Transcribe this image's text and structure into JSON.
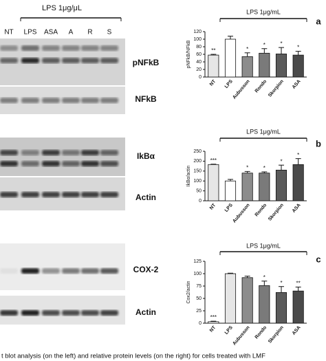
{
  "figure": {
    "blot_header": "LPS 1μg/μL",
    "lanes": [
      "NT",
      "LPS",
      "ASA",
      "A",
      "R",
      "S"
    ],
    "blot_labels": [
      "pNFkB",
      "NFkB",
      "IkBα",
      "Actin",
      "COX-2",
      "Actin"
    ],
    "caption": "t blot analysis (on the left) and relative protein levels (on the right) for cells treated with LMF"
  },
  "chart_data": [
    {
      "type": "bar",
      "panel": "a",
      "title": "LPS 1μg/mL",
      "ylabel": "pNFkB/NFkB",
      "categories": [
        "NT",
        "LPS",
        "Aubusson",
        "Rondo",
        "Skorpion",
        "ASA"
      ],
      "values": [
        58,
        100,
        54,
        63,
        61,
        58
      ],
      "errors": [
        2,
        8,
        10,
        12,
        17,
        10
      ],
      "annotations": [
        "**",
        null,
        "*",
        "*",
        "*",
        "*"
      ],
      "colors": [
        "#e6e6e6",
        "#ffffff",
        "#8c8c8c",
        "#7a7a7a",
        "#5a5a5a",
        "#4a4a4a"
      ],
      "ylim": [
        0,
        120
      ],
      "yticks": [
        0,
        20,
        40,
        60,
        80,
        100,
        120
      ]
    },
    {
      "type": "bar",
      "panel": "b",
      "title": "LPS 1μg/mL",
      "ylabel": "IkBα/actin",
      "categories": [
        "NT",
        "LPS",
        "Aubusson",
        "Rondo",
        "Skorpion",
        "ASA"
      ],
      "values": [
        183,
        100,
        140,
        140,
        155,
        183
      ],
      "errors": [
        2,
        8,
        8,
        6,
        25,
        30
      ],
      "annotations": [
        "***",
        null,
        "*",
        "*",
        "*",
        "*"
      ],
      "colors": [
        "#e6e6e6",
        "#ffffff",
        "#8c8c8c",
        "#7a7a7a",
        "#5a5a5a",
        "#4a4a4a"
      ],
      "ylim": [
        0,
        250
      ],
      "yticks": [
        0,
        50,
        100,
        150,
        200,
        250
      ]
    },
    {
      "type": "bar",
      "panel": "c",
      "title": "LPS 1μg/mL",
      "ylabel": "Cox2/actin",
      "categories": [
        "NT",
        "LPS",
        "Aubusson",
        "Rondo",
        "Skorpion",
        "ASA"
      ],
      "values": [
        3,
        100,
        92,
        76,
        62,
        65
      ],
      "errors": [
        1,
        1,
        3,
        9,
        12,
        8
      ],
      "annotations": [
        "***",
        null,
        null,
        "*",
        "*",
        "**"
      ],
      "colors": [
        "#ffffff",
        "#e6e6e6",
        "#8c8c8c",
        "#7a7a7a",
        "#5a5a5a",
        "#4a4a4a"
      ],
      "ylim": [
        0,
        125
      ],
      "yticks": [
        0,
        25,
        50,
        75,
        100,
        125
      ]
    }
  ]
}
